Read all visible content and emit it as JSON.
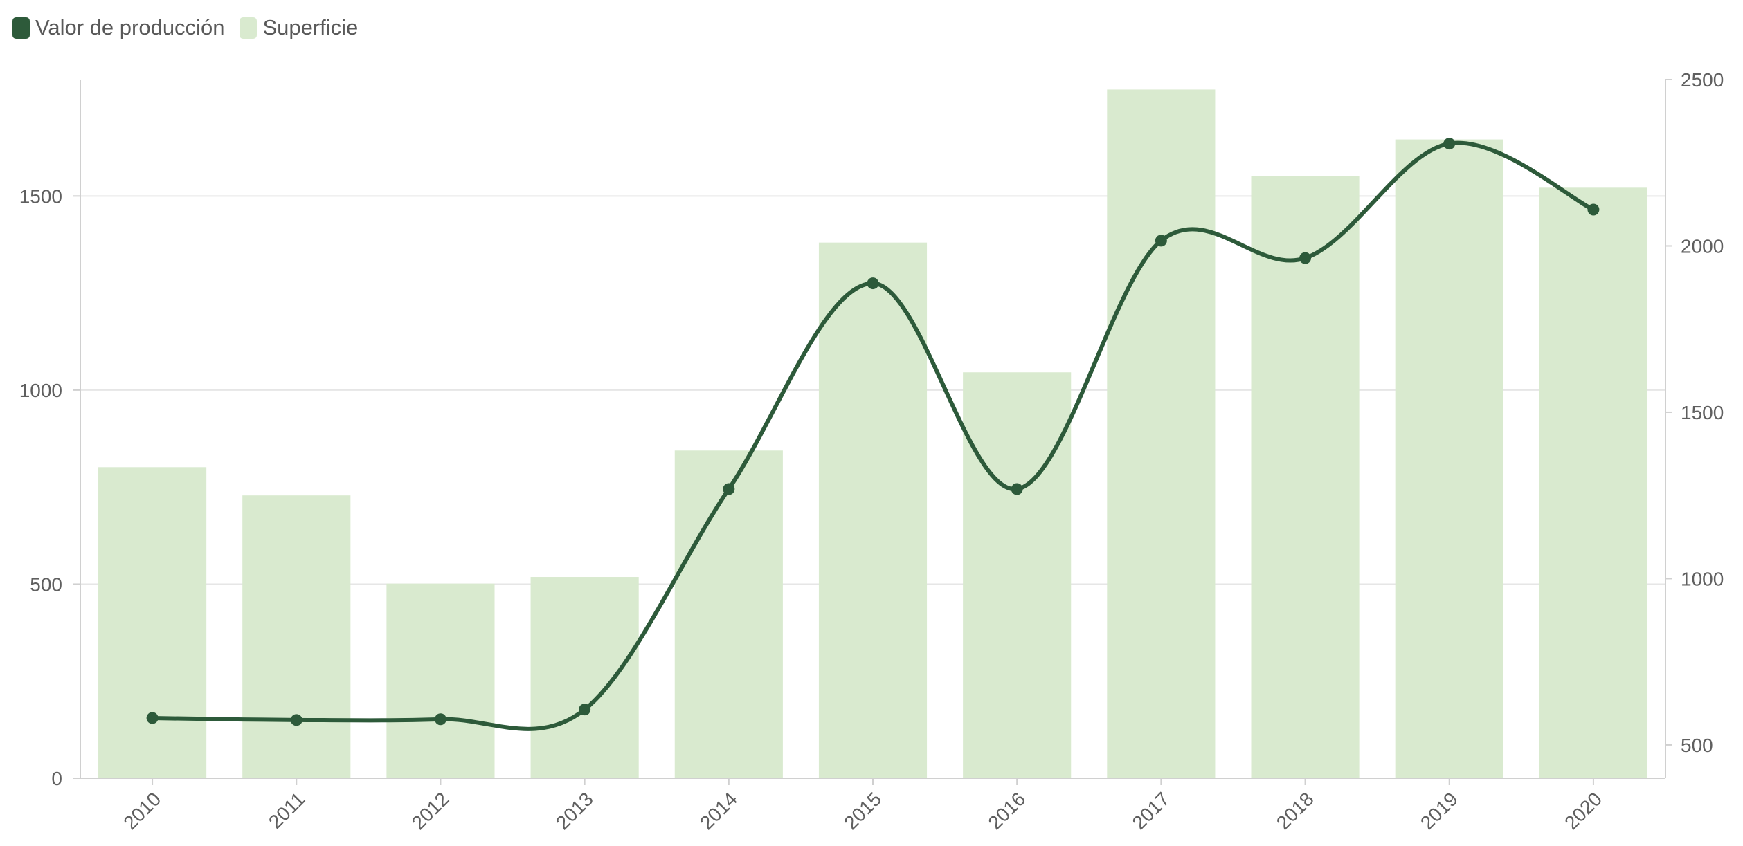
{
  "legend": {
    "items": [
      {
        "label": "Valor de producción",
        "color": "#2d5a3a"
      },
      {
        "label": "Superficie",
        "color": "#d9eacf"
      }
    ]
  },
  "chart_data": {
    "type": "bar",
    "categories": [
      "2010",
      "2011",
      "2012",
      "2013",
      "2014",
      "2015",
      "2016",
      "2017",
      "2018",
      "2019",
      "2020"
    ],
    "series": [
      {
        "name": "Valor de producción",
        "type": "line",
        "axis": "left",
        "color": "#2d5a3a",
        "values": [
          155,
          150,
          152,
          177,
          745,
          1275,
          745,
          1385,
          1340,
          1635,
          1465
        ]
      },
      {
        "name": "Superficie",
        "type": "bar",
        "axis": "right",
        "color": "#d9eacf",
        "values": [
          1335,
          1250,
          985,
          1005,
          1385,
          2010,
          1620,
          2470,
          2210,
          2320,
          2175
        ]
      }
    ],
    "y_left": {
      "ticks": [
        0,
        500,
        1000,
        1500
      ],
      "ylim": [
        0,
        1800
      ]
    },
    "y_right": {
      "ticks": [
        500,
        1000,
        1500,
        2000,
        2500
      ],
      "ylim": [
        400,
        2500
      ]
    },
    "grid": true,
    "legend_position": "top-left",
    "title": "",
    "xlabel": "",
    "ylabel": ""
  }
}
